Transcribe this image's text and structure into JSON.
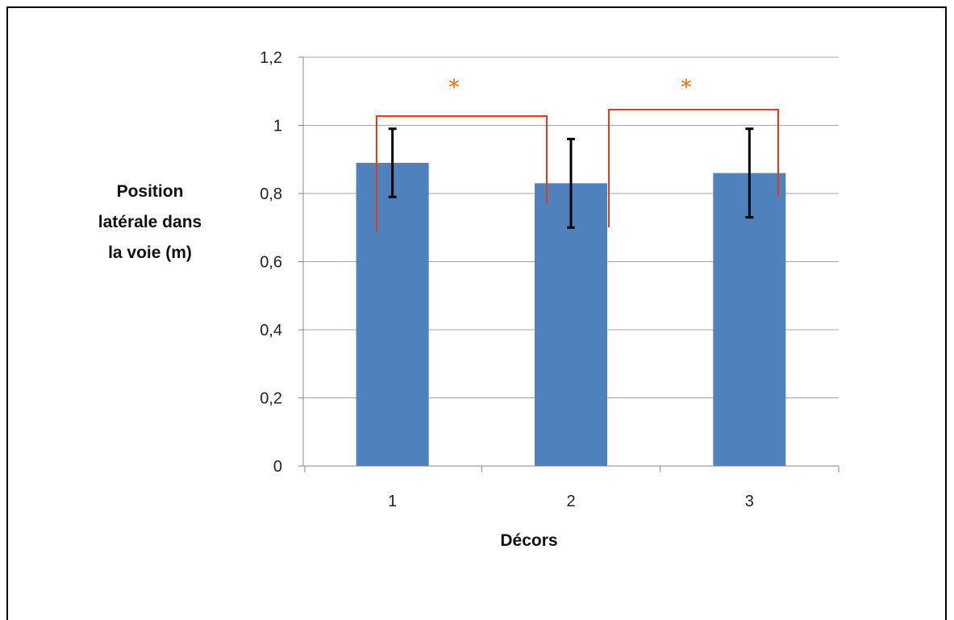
{
  "chart_data": {
    "type": "bar",
    "categories": [
      "1",
      "2",
      "3"
    ],
    "values": [
      0.89,
      0.83,
      0.86
    ],
    "error": [
      {
        "low": 0.79,
        "high": 0.99
      },
      {
        "low": 0.7,
        "high": 0.96
      },
      {
        "low": 0.73,
        "high": 0.99
      }
    ],
    "xlabel": "Décors",
    "ylabel_lines": [
      "Position",
      "latérale dans",
      "la voie (m)"
    ],
    "ylim": [
      0,
      1.2
    ],
    "yticks": [
      0,
      0.2,
      0.4,
      0.6,
      0.8,
      1,
      1.2
    ],
    "ytick_labels": [
      "0",
      "0,2",
      "0,4",
      "0,6",
      "0,8",
      "1",
      "1,2"
    ],
    "grid": true,
    "legend": "none",
    "significance": [
      {
        "from": "1",
        "to": "2",
        "label": "*"
      },
      {
        "from": "2",
        "to": "3",
        "label": "*"
      }
    ],
    "colors": {
      "bar": "#4f81bd",
      "error_bar": "#000000",
      "bracket": "#e03a1e",
      "star": "#e46c0a",
      "grid": "#a6a6a6",
      "axis": "#888888"
    }
  }
}
